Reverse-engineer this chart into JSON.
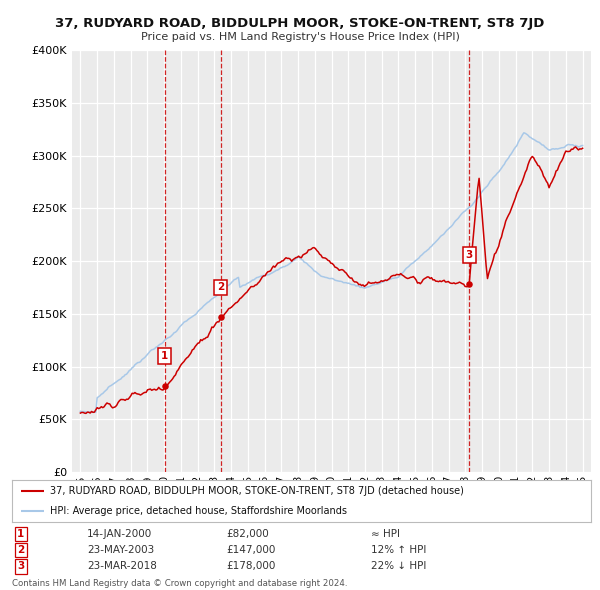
{
  "title": "37, RUDYARD ROAD, BIDDULPH MOOR, STOKE-ON-TRENT, ST8 7JD",
  "subtitle": "Price paid vs. HM Land Registry's House Price Index (HPI)",
  "bg_color": "#ffffff",
  "plot_bg_color": "#ebebeb",
  "grid_color": "#ffffff",
  "hpi_line_color": "#a8c8e8",
  "price_line_color": "#cc0000",
  "sale_dot_color": "#cc0000",
  "dashed_line_color": "#cc0000",
  "legend_label_price": "37, RUDYARD ROAD, BIDDULPH MOOR, STOKE-ON-TRENT, ST8 7JD (detached house)",
  "legend_label_hpi": "HPI: Average price, detached house, Staffordshire Moorlands",
  "purchases": [
    {
      "num": 1,
      "date": "14-JAN-2000",
      "price": 82000,
      "rel": "≈ HPI",
      "year": 2000.04
    },
    {
      "num": 2,
      "date": "23-MAY-2003",
      "price": 147000,
      "rel": "12% ↑ HPI",
      "year": 2003.39
    },
    {
      "num": 3,
      "date": "23-MAR-2018",
      "price": 178000,
      "rel": "22% ↓ HPI",
      "year": 2018.22
    }
  ],
  "footer": "Contains HM Land Registry data © Crown copyright and database right 2024.\nThis data is licensed under the Open Government Licence v3.0.",
  "ylim": [
    0,
    400000
  ],
  "yticks": [
    0,
    50000,
    100000,
    150000,
    200000,
    250000,
    300000,
    350000,
    400000
  ],
  "ytick_labels": [
    "£0",
    "£50K",
    "£100K",
    "£150K",
    "£200K",
    "£250K",
    "£300K",
    "£350K",
    "£400K"
  ],
  "xlim": [
    1994.5,
    2025.5
  ],
  "xtick_years": [
    1995,
    1996,
    1997,
    1998,
    1999,
    2000,
    2001,
    2002,
    2003,
    2004,
    2005,
    2006,
    2007,
    2008,
    2009,
    2010,
    2011,
    2012,
    2013,
    2014,
    2015,
    2016,
    2017,
    2018,
    2019,
    2020,
    2021,
    2022,
    2023,
    2024,
    2025
  ]
}
